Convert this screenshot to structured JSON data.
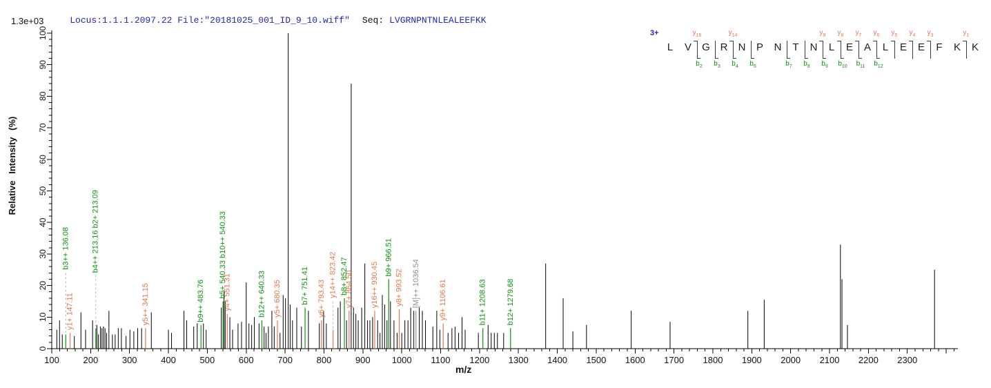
{
  "header": {
    "locus_file": "Locus:1.1.1.2097.22 File:\"20181025_001_ID_9_10.wiff\"",
    "seq_label": "Seq:",
    "seq_value": "LVGRNPNTNLEALEEFKK"
  },
  "colors": {
    "header_blue": "#2323c0",
    "charge_blue": "#2323c0",
    "b_ion_green": "#0c930c",
    "y_ion_orange": "#e0784a",
    "precursor_gray": "#909090",
    "peak_black": "#000000",
    "leader_dash_gray": "#b8b8b8"
  },
  "sequence": {
    "charge": "3+",
    "residues": [
      "L",
      "V",
      "G",
      "R",
      "N",
      "P",
      "N",
      "T",
      "N",
      "L",
      "E",
      "A",
      "L",
      "E",
      "E",
      "F",
      "K",
      "K"
    ],
    "fragment_boundaries": [
      {
        "after": 2,
        "y": "y16",
        "b": "b2"
      },
      {
        "after": 3,
        "b": "b3"
      },
      {
        "after": 4,
        "y": "y14",
        "b": "b4"
      },
      {
        "after": 5,
        "b": "b5"
      },
      {
        "after": 7,
        "b": "b7"
      },
      {
        "after": 8,
        "b": "b8"
      },
      {
        "after": 9,
        "y": "y9",
        "b": "b9"
      },
      {
        "after": 10,
        "y": "y8",
        "b": "b10"
      },
      {
        "after": 11,
        "y": "y7",
        "b": "b11"
      },
      {
        "after": 12,
        "y": "y6",
        "b": "b12"
      },
      {
        "after": 13,
        "y": "y5"
      },
      {
        "after": 14,
        "y": "y4"
      },
      {
        "after": 15,
        "y": "y3"
      },
      {
        "after": 17,
        "y": "y1"
      }
    ]
  },
  "chart_data": {
    "type": "bar",
    "subtype": "ms2-centroid-mass-spectrum",
    "title": "",
    "xlabel": "m/z",
    "ylabel": "Relative Intensity (%)",
    "intensity_scale_label": "1.3e+03",
    "xlim": [
      100,
      2430
    ],
    "ylim": [
      0,
      100
    ],
    "x_major_tick_step": 100,
    "x_minor_tick_step": 20,
    "x_last_labeled_tick": 2300,
    "y_major_tick_step": 10,
    "y_minor_tick_step": 2,
    "grid": false,
    "legend": "none",
    "annotated_peaks": [
      {
        "ions": [
          "b3++ 136.08"
        ],
        "mz": 136.08,
        "intensity": 4.5,
        "type": "b",
        "leader": true,
        "label_from": 25
      },
      {
        "ions": [
          "y1+ 147.11"
        ],
        "mz": 147.11,
        "intensity": 5,
        "type": "y"
      },
      {
        "ions": [
          "b4++ 213.16",
          "b2+ 213.09"
        ],
        "mz": 213.12,
        "intensity": 6.5,
        "type": "b",
        "leader": true,
        "label_from": 24
      },
      {
        "ions": [
          "y5++ 341.15"
        ],
        "mz": 341.15,
        "intensity": 6.5,
        "type": "y"
      },
      {
        "ions": [
          "b9++ 483.76"
        ],
        "mz": 483.76,
        "intensity": 7.5,
        "type": "b"
      },
      {
        "ions": [
          "b5+ 540.33",
          "b10++ 540.33"
        ],
        "mz": 540.33,
        "intensity": 15,
        "type": "b"
      },
      {
        "ions": [
          "y4+ 551.31"
        ],
        "mz": 551.31,
        "intensity": 11,
        "type": "y"
      },
      {
        "ions": [
          "b12++ 640.33"
        ],
        "mz": 640.33,
        "intensity": 9,
        "type": "b"
      },
      {
        "ions": [
          "y5+ 680.35"
        ],
        "mz": 680.35,
        "intensity": 9,
        "type": "y"
      },
      {
        "ions": [
          "b7+ 751.41"
        ],
        "mz": 751.41,
        "intensity": 13,
        "type": "b"
      },
      {
        "ions": [
          "y6+ 793.43"
        ],
        "mz": 793.43,
        "intensity": 9,
        "type": "y"
      },
      {
        "ions": [
          "y14++ 823.42"
        ],
        "mz": 823.42,
        "intensity": 6,
        "type": "y",
        "leader": true,
        "label_from": 16
      },
      {
        "ions": [
          "b8+ 852.47"
        ],
        "mz": 852.47,
        "intensity": 16,
        "type": "b"
      },
      {
        "ions": [
          "y7+ 864.50"
        ],
        "mz": 864.5,
        "intensity": 12,
        "type": "y"
      },
      {
        "ions": [
          "y16++ 930.45"
        ],
        "mz": 930.45,
        "intensity": 12,
        "type": "y"
      },
      {
        "ions": [
          "b9+ 966.51"
        ],
        "mz": 966.51,
        "intensity": 22,
        "type": "b"
      },
      {
        "ions": [
          "y8+ 993.52"
        ],
        "mz": 993.52,
        "intensity": 12.5,
        "type": "y"
      },
      {
        "ions": [
          "[M]++ 1036.54"
        ],
        "mz": 1036.54,
        "intensity": 12,
        "type": "precursor"
      },
      {
        "ions": [
          "y9+ 1106.61"
        ],
        "mz": 1106.61,
        "intensity": 8,
        "type": "y"
      },
      {
        "ions": [
          "b11+ 1208.63"
        ],
        "mz": 1208.63,
        "intensity": 6.5,
        "type": "b"
      },
      {
        "ions": [
          "b12+ 1279.68"
        ],
        "mz": 1279.68,
        "intensity": 6.5,
        "type": "b"
      }
    ],
    "peaks": [
      [
        113,
        6
      ],
      [
        120,
        9
      ],
      [
        127,
        4.5
      ],
      [
        158,
        4
      ],
      [
        175,
        11.5
      ],
      [
        187,
        6
      ],
      [
        205,
        9
      ],
      [
        216,
        7.5
      ],
      [
        220,
        4.5
      ],
      [
        225,
        7
      ],
      [
        229,
        6.5
      ],
      [
        233,
        7
      ],
      [
        237,
        6.5
      ],
      [
        241,
        5
      ],
      [
        247,
        12
      ],
      [
        256,
        4.5
      ],
      [
        263,
        4.5
      ],
      [
        271,
        6.5
      ],
      [
        279,
        6.5
      ],
      [
        291,
        4
      ],
      [
        301,
        6
      ],
      [
        311,
        5.5
      ],
      [
        321,
        6.5
      ],
      [
        331,
        6.5
      ],
      [
        356,
        11.5
      ],
      [
        400,
        6
      ],
      [
        408,
        5
      ],
      [
        440,
        12
      ],
      [
        447,
        9
      ],
      [
        465,
        7
      ],
      [
        474,
        8
      ],
      [
        490,
        8
      ],
      [
        497,
        6
      ],
      [
        536,
        13
      ],
      [
        543,
        18
      ],
      [
        546,
        15
      ],
      [
        558,
        10
      ],
      [
        565,
        6
      ],
      [
        579,
        8
      ],
      [
        588,
        8.5
      ],
      [
        600,
        21
      ],
      [
        607,
        8
      ],
      [
        614,
        7.5
      ],
      [
        621,
        10
      ],
      [
        633,
        8
      ],
      [
        646,
        7
      ],
      [
        651,
        5
      ],
      [
        657,
        7
      ],
      [
        666,
        12
      ],
      [
        672,
        7
      ],
      [
        687,
        5
      ],
      [
        695,
        17
      ],
      [
        701,
        16
      ],
      [
        708,
        100
      ],
      [
        713,
        14
      ],
      [
        719,
        9
      ],
      [
        730,
        13
      ],
      [
        742,
        7
      ],
      [
        760,
        12
      ],
      [
        788,
        8
      ],
      [
        799,
        12
      ],
      [
        806,
        8
      ],
      [
        836,
        13
      ],
      [
        842,
        15
      ],
      [
        858,
        9
      ],
      [
        870,
        84
      ],
      [
        876,
        13
      ],
      [
        882,
        11
      ],
      [
        888,
        9
      ],
      [
        897,
        13
      ],
      [
        905,
        27
      ],
      [
        912,
        9
      ],
      [
        918,
        9
      ],
      [
        925,
        10
      ],
      [
        938,
        9
      ],
      [
        944,
        5
      ],
      [
        950,
        17
      ],
      [
        956,
        14
      ],
      [
        962,
        9
      ],
      [
        971,
        15
      ],
      [
        980,
        9
      ],
      [
        988,
        5
      ],
      [
        1000,
        5
      ],
      [
        1008,
        9
      ],
      [
        1016,
        9
      ],
      [
        1023,
        13
      ],
      [
        1031,
        12
      ],
      [
        1045,
        13
      ],
      [
        1053,
        12
      ],
      [
        1061,
        9
      ],
      [
        1080,
        7
      ],
      [
        1090,
        12
      ],
      [
        1098,
        6
      ],
      [
        1119,
        5
      ],
      [
        1129,
        6.5
      ],
      [
        1137,
        7
      ],
      [
        1146,
        5
      ],
      [
        1155,
        10
      ],
      [
        1163,
        6
      ],
      [
        1197,
        5
      ],
      [
        1222,
        7.5
      ],
      [
        1230,
        5
      ],
      [
        1238,
        5
      ],
      [
        1246,
        5
      ],
      [
        1262,
        5
      ],
      [
        1370,
        27
      ],
      [
        1415,
        16
      ],
      [
        1440,
        5.5
      ],
      [
        1475,
        7.5
      ],
      [
        1590,
        12
      ],
      [
        1690,
        8.5
      ],
      [
        1890,
        12
      ],
      [
        1932,
        15.5
      ],
      [
        2128,
        33
      ],
      [
        2132,
        22
      ],
      [
        2146,
        7.5
      ],
      [
        2370,
        25
      ]
    ]
  }
}
